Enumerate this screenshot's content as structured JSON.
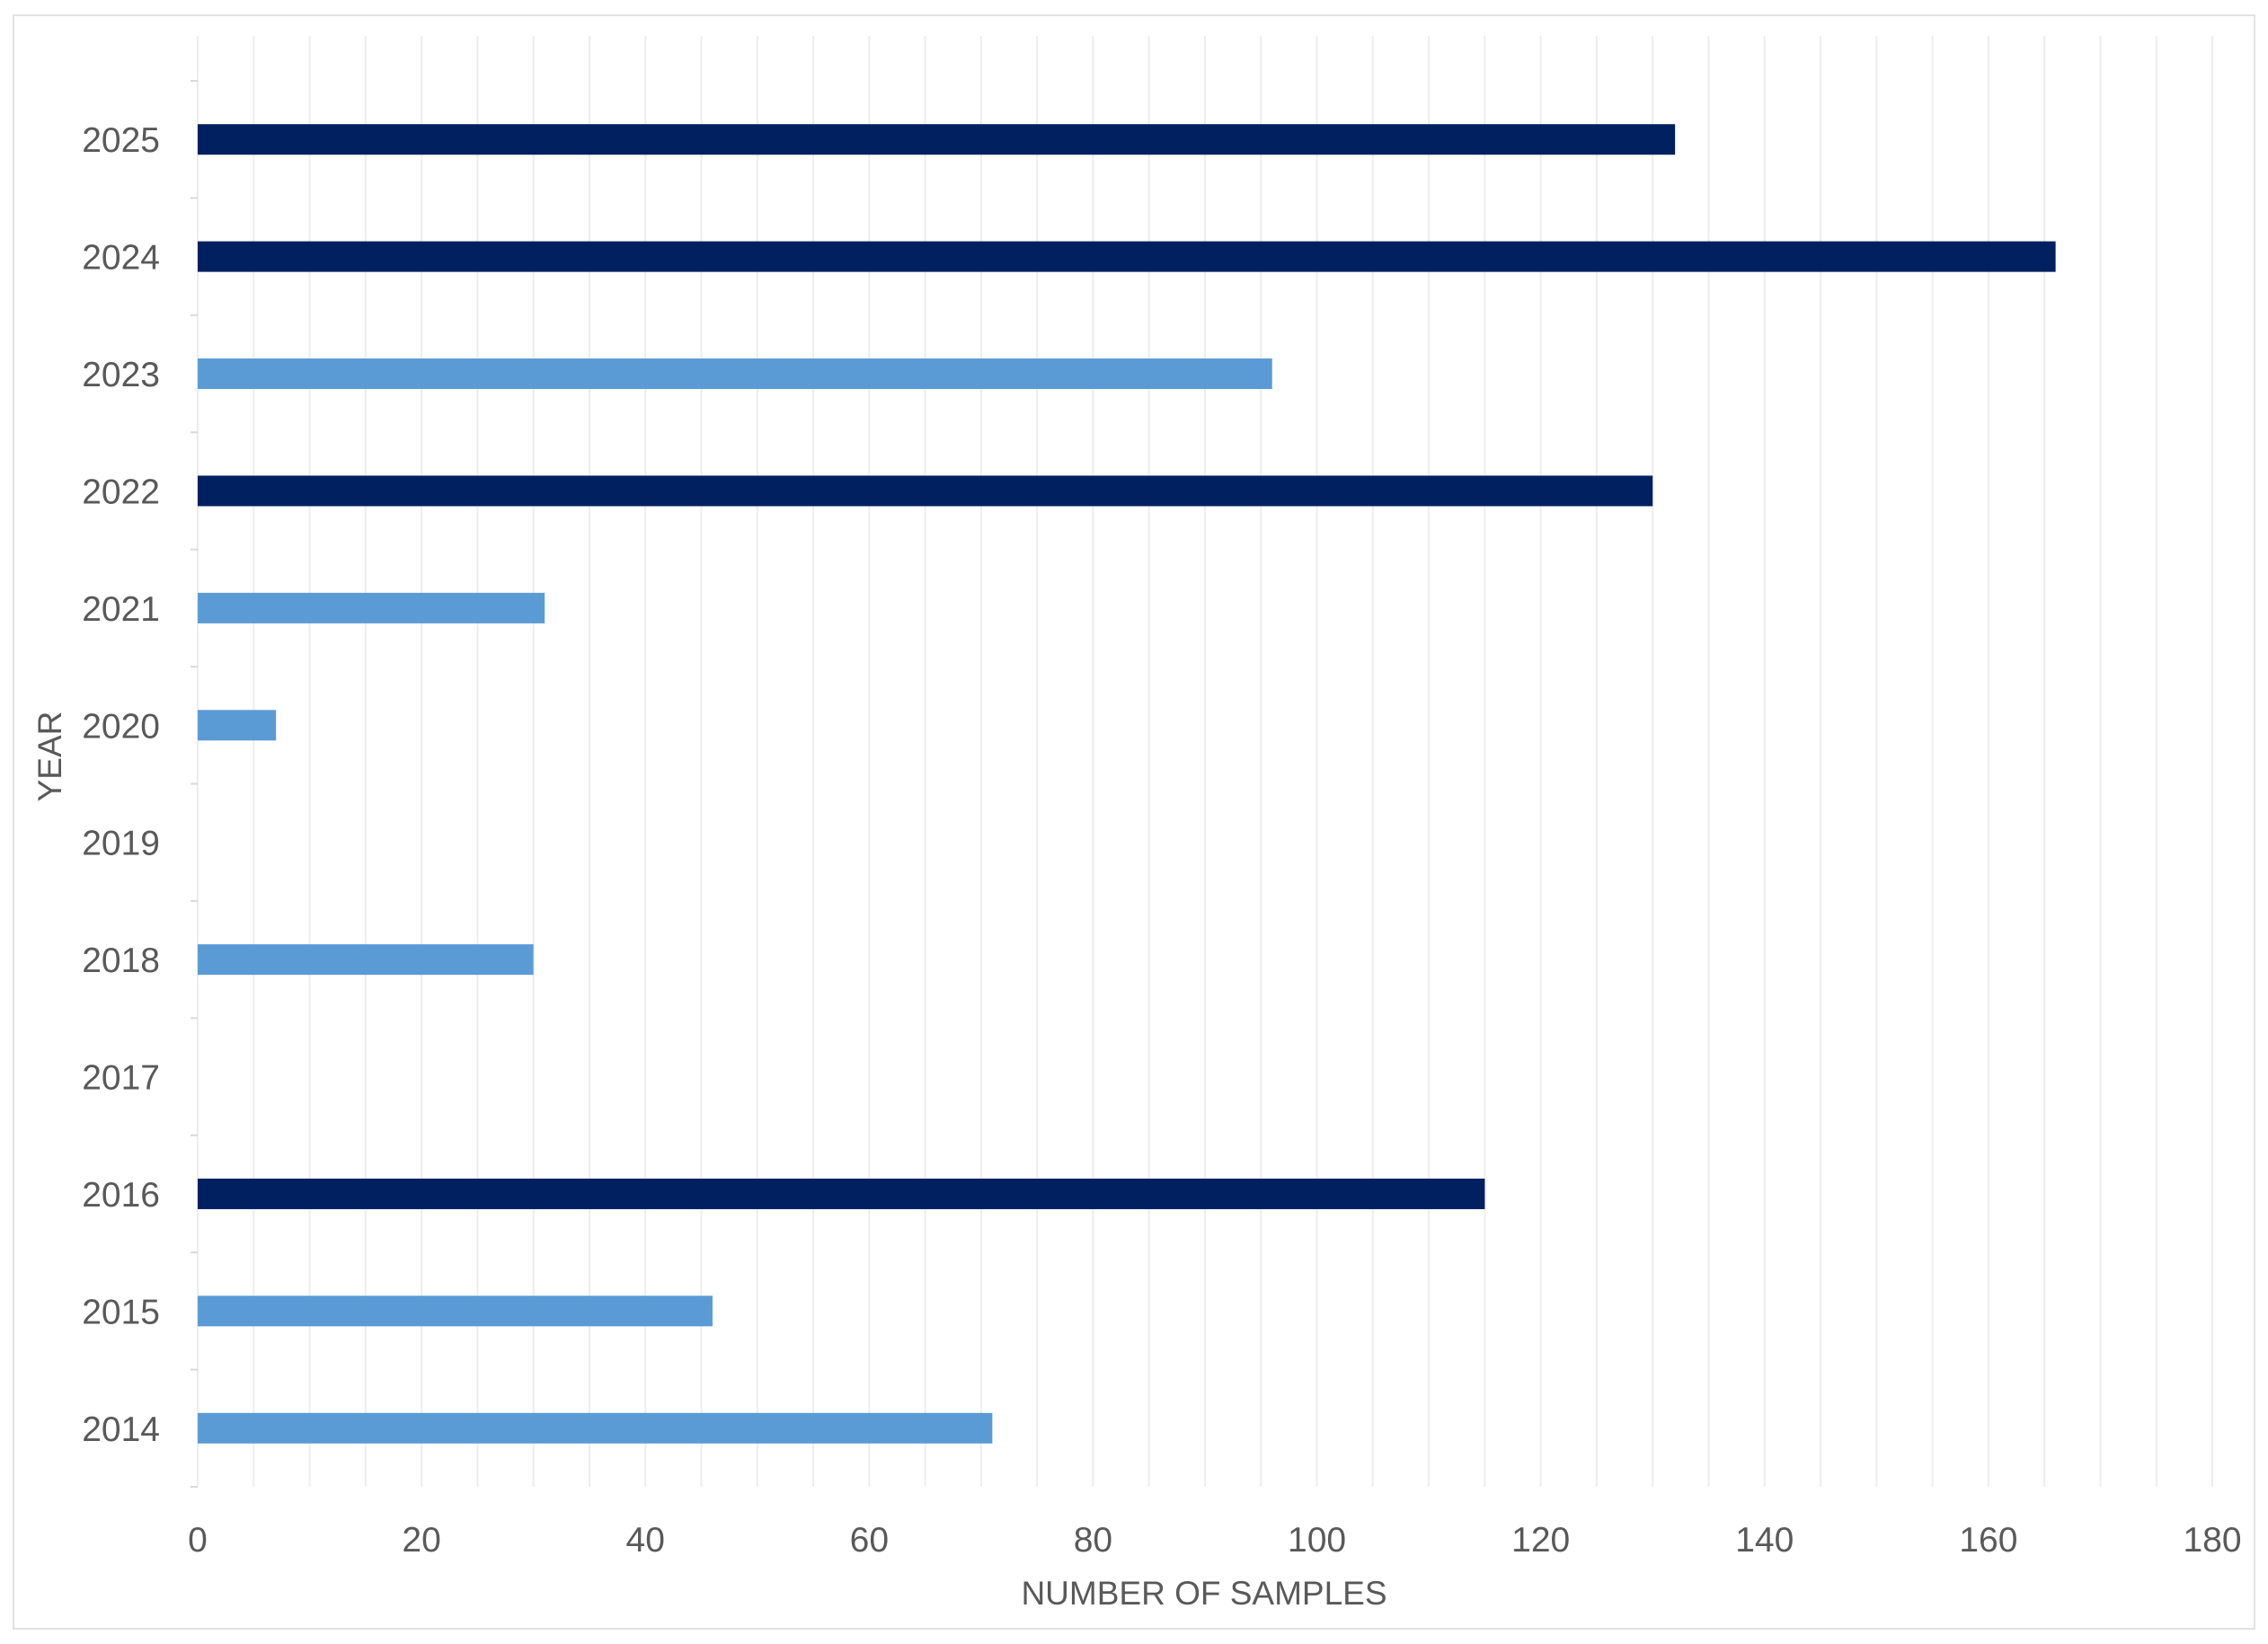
{
  "chart_data": {
    "type": "bar",
    "orientation": "horizontal",
    "categories": [
      "2014",
      "2015",
      "2016",
      "2017",
      "2018",
      "2019",
      "2020",
      "2021",
      "2022",
      "2023",
      "2024",
      "2025"
    ],
    "values": [
      71,
      46,
      115,
      0,
      30,
      0,
      7,
      31,
      130,
      96,
      166,
      132
    ],
    "bar_colors": [
      "#5b9bd5",
      "#5b9bd5",
      "#002060",
      "#5b9bd5",
      "#5b9bd5",
      "#5b9bd5",
      "#5b9bd5",
      "#5b9bd5",
      "#002060",
      "#5b9bd5",
      "#002060",
      "#002060"
    ],
    "xlabel": "NUMBER OF SAMPLES",
    "ylabel": "YEAR",
    "xlim": [
      0,
      180
    ],
    "xticks": [
      0,
      20,
      40,
      60,
      80,
      100,
      120,
      140,
      160,
      180
    ],
    "grid": true,
    "legend": false
  }
}
